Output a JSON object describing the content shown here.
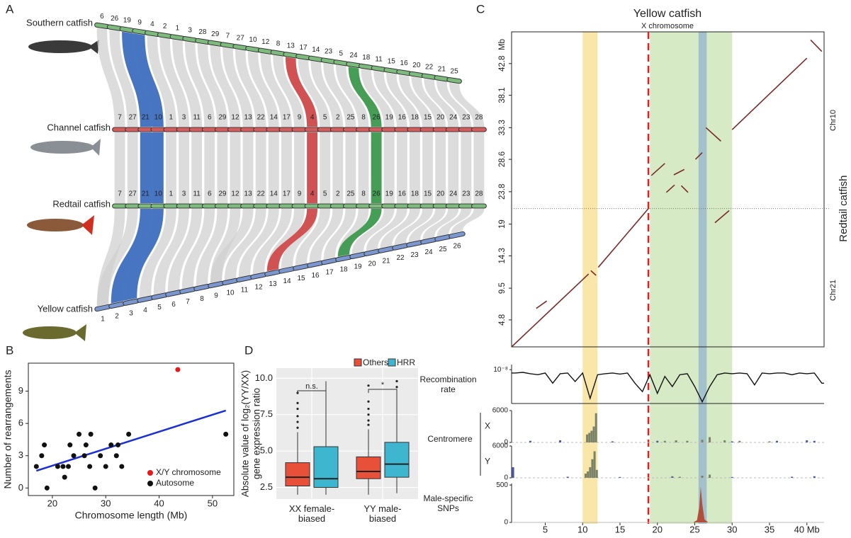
{
  "panel_labels": [
    "A",
    "B",
    "C",
    "D"
  ],
  "synteny": {
    "genomes": [
      {
        "name": "Southern catfish",
        "color": "#5aa55a",
        "bar": "#7dbb7d",
        "chromosomes": [
          6,
          26,
          19,
          9,
          4,
          2,
          1,
          3,
          28,
          29,
          7,
          27,
          10,
          12,
          8,
          13,
          17,
          14,
          23,
          5,
          24,
          18,
          11,
          15,
          16,
          20,
          22,
          21,
          25
        ]
      },
      {
        "name": "Channel catfish",
        "color": "#d24b4b",
        "bar": "#d65c5c",
        "chromosomes": [
          7,
          27,
          21,
          10,
          1,
          3,
          11,
          6,
          29,
          12,
          13,
          22,
          14,
          17,
          9,
          4,
          5,
          2,
          25,
          8,
          26,
          19,
          16,
          18,
          15,
          20,
          24,
          23,
          28
        ]
      },
      {
        "name": "Redtail catfish",
        "color": "#5aa55a",
        "bar": "#7dbb7d",
        "chromosomes": [
          7,
          27,
          21,
          10,
          1,
          3,
          11,
          6,
          29,
          12,
          13,
          22,
          14,
          17,
          9,
          4,
          5,
          2,
          25,
          8,
          26,
          19,
          16,
          18,
          15,
          20,
          24,
          23,
          28
        ]
      },
      {
        "name": "Yellow catfish",
        "color": "#4a70b5",
        "bar": "#7b97cf",
        "chromosomes": [
          1,
          2,
          3,
          4,
          5,
          6,
          7,
          8,
          9,
          10,
          11,
          12,
          13,
          14,
          15,
          16,
          17,
          18,
          19,
          20,
          21,
          22,
          23,
          24,
          25,
          26
        ]
      }
    ],
    "highlights": [
      {
        "color": "#3f6fc0",
        "chromosomes": [
          [
            19,
            9
          ],
          [
            21,
            10
          ],
          [
            21,
            10
          ],
          [
            2,
            3
          ]
        ]
      },
      {
        "color": "#cf4a4a",
        "chromosomes": [
          [
            13
          ],
          [
            4
          ],
          [
            4
          ],
          [
            13
          ]
        ]
      },
      {
        "color": "#3d9a4e",
        "chromosomes": [
          [
            24
          ],
          [
            26
          ],
          [
            26
          ],
          [
            18
          ]
        ]
      }
    ]
  },
  "chart_data": [
    {
      "type": "scatter",
      "xlabel": "Chromosome length (Mb)",
      "ylabel": "Number of rearrangements",
      "xlim": [
        15.5,
        54
      ],
      "ylim": [
        -0.7,
        11.6
      ],
      "xticks": [
        20,
        30,
        40,
        50
      ],
      "yticks": [
        0,
        3,
        6,
        9
      ],
      "series": [
        {
          "name": "X/Y chromosome",
          "color": "#e8191a",
          "x": [
            43.5
          ],
          "values": [
            11
          ]
        },
        {
          "name": "Autosome",
          "color": "#111111",
          "x": [
            17,
            18,
            18.5,
            19,
            21,
            22,
            22.3,
            23,
            23.3,
            24,
            25,
            26,
            26.3,
            27,
            27.2,
            28,
            29,
            30,
            31,
            32,
            32.3,
            33,
            34.3,
            52.5
          ],
          "values": [
            2,
            3,
            4,
            0,
            2,
            2,
            1,
            2,
            4,
            3,
            5,
            3,
            4,
            2,
            5,
            0,
            3,
            2,
            4,
            3,
            4,
            2,
            5,
            5
          ]
        }
      ],
      "trend": {
        "color": "#1b2fd6",
        "x": [
          17,
          52.5
        ],
        "values": [
          1.6,
          7.2
        ]
      }
    },
    {
      "type": "box",
      "ylabel": [
        "Absolute value of log₂(YY/XX)",
        "gene expression ratio"
      ],
      "categories": [
        "XX female-biased",
        "YY male-biased"
      ],
      "ylim": [
        1.7,
        10.7
      ],
      "yticks": [
        {
          "value": 2.5,
          "label": "2.5"
        },
        {
          "value": 5,
          "label": "5.0"
        },
        {
          "value": 7.5,
          "label": "7.5"
        },
        {
          "value": 10,
          "label": "10.0"
        }
      ],
      "series": [
        {
          "name": "Others",
          "color": "#e8503a",
          "boxes": [
            {
              "whislo": 2.0,
              "q1": 2.6,
              "med": 3.2,
              "q3": 4.2,
              "whishi": 6.3,
              "outliers": [
                6.6,
                7.0,
                7.4,
                7.9,
                8.3,
                9.0
              ]
            },
            {
              "whislo": 2.0,
              "q1": 3.1,
              "med": 3.6,
              "q3": 4.6,
              "whishi": 6.5,
              "outliers": [
                6.8,
                7.1,
                7.5,
                7.9,
                8.4,
                9.5
              ]
            }
          ]
        },
        {
          "name": "HRR",
          "color": "#3fb6d0",
          "boxes": [
            {
              "whislo": 2.0,
              "q1": 2.5,
              "med": 3.1,
              "q3": 5.3,
              "whishi": 9.8,
              "outliers": []
            },
            {
              "whislo": 2.1,
              "q1": 3.2,
              "med": 4.1,
              "q3": 5.6,
              "whishi": 9.1,
              "outliers": [
                9.4,
                9.8
              ]
            }
          ]
        }
      ],
      "annotations": [
        "n.s.",
        "*"
      ]
    },
    {
      "type": "dotplot",
      "title": "Yellow catfish",
      "subtitle": "X chromosome",
      "ylabel": "Redtail catfish",
      "y_unit": "Mb",
      "chromosome_labels": [
        "Chr10",
        "Chr21"
      ],
      "xlim": [
        0.5,
        42.3
      ],
      "ylim": [
        0.8,
        47.5
      ],
      "xticks": [
        5,
        10,
        15,
        20,
        25,
        30,
        35,
        {
          "value": 40,
          "label": "40 Mb"
        }
      ],
      "yticks": [
        4.8,
        9.5,
        14.3,
        19,
        23.8,
        28.6,
        33.3,
        38.1,
        42.8
      ],
      "boundary": {
        "x": 18.8,
        "y": 21.3,
        "color": "#e02020"
      },
      "regions": [
        {
          "x": [
            10,
            12
          ],
          "color": "#f8e4a0"
        },
        {
          "x": [
            19,
            30
          ],
          "color": "#d3e8c0"
        },
        {
          "x": [
            25.5,
            26.6
          ],
          "color": "#9dbccc"
        }
      ],
      "color": "#7a2a2a",
      "segments": [
        [
          0.5,
          0.8,
          10.8,
          11.6
        ],
        [
          11.1,
          12.1,
          11.8,
          11.4
        ],
        [
          12.1,
          12.6,
          18.8,
          21.3
        ],
        [
          30,
          33,
          40,
          43.6
        ],
        [
          40.5,
          46.3,
          42,
          44.6
        ],
        [
          19.2,
          26.2,
          21,
          28
        ],
        [
          21.2,
          23.7,
          22.3,
          24.8
        ],
        [
          22.2,
          26.3,
          23.6,
          27.1
        ],
        [
          23.2,
          24.7,
          24.1,
          23.7
        ],
        [
          25.1,
          28.6,
          26,
          29.6
        ],
        [
          26.5,
          33.3,
          28.5,
          31.3
        ],
        [
          27.7,
          19.2,
          29.6,
          21
        ],
        [
          3.8,
          6.5,
          5.2,
          7.6
        ]
      ]
    },
    {
      "type": "line",
      "name": "Recombination rate",
      "color": "#111111",
      "ylim": [
        0,
        1.15e-08
      ],
      "yticks": [
        {
          "value": 1e-08,
          "label": "10⁻⁸"
        }
      ],
      "x": [
        1,
        2,
        3,
        4,
        5,
        6,
        7,
        8,
        9,
        10,
        11,
        12,
        13,
        14,
        15,
        16,
        17,
        18,
        19,
        20,
        21,
        22,
        23,
        24,
        25,
        26,
        27,
        28,
        29,
        30,
        31,
        32,
        33,
        34,
        35,
        36,
        37,
        38,
        39,
        40,
        41,
        42
      ],
      "values": [
        9e-09,
        9.2e-09,
        8.8e-09,
        8.5e-09,
        9e-09,
        6e-09,
        8.8e-09,
        9e-09,
        6.5e-09,
        9e-09,
        1.5e-09,
        8.5e-09,
        8.8e-09,
        9e-09,
        8.7e-09,
        9e-09,
        6e-09,
        3.5e-09,
        8.5e-09,
        3e-09,
        8e-09,
        5e-09,
        8.5e-09,
        8.8e-09,
        5e-09,
        5e-10,
        5e-09,
        8.5e-09,
        9e-09,
        8.8e-09,
        9e-09,
        8.8e-09,
        5.5e-09,
        9e-09,
        8.8e-09,
        9e-09,
        9e-09,
        8.5e-09,
        9e-09,
        8.8e-09,
        9e-09,
        6e-09
      ]
    },
    {
      "type": "bar",
      "name": "Centromere",
      "track": "X",
      "ylim": [
        0,
        6000
      ],
      "yticks": [
        0,
        6000
      ],
      "series": [
        {
          "color": "#7b8268",
          "x": [
            10.6,
            10.9,
            11.2,
            11.5,
            11.8,
            21,
            22.5,
            24,
            26,
            27,
            29,
            31,
            35
          ],
          "values": [
            1500,
            1800,
            2200,
            3000,
            5500,
            300,
            400,
            300,
            500,
            1000,
            400,
            300,
            200
          ]
        },
        {
          "color": "#4859a8",
          "x": [
            3,
            7,
            14,
            20,
            30,
            36,
            40,
            41
          ],
          "values": [
            300,
            400,
            200,
            300,
            200,
            300,
            400,
            300
          ]
        }
      ]
    },
    {
      "type": "bar",
      "track": "Y",
      "ylim": [
        0,
        6000
      ],
      "yticks": [
        0,
        6000
      ],
      "series": [
        {
          "color": "#7b8268",
          "x": [
            10.4,
            10.7,
            11,
            11.3,
            11.6,
            11.9,
            22,
            23,
            26,
            27
          ],
          "values": [
            800,
            1200,
            2000,
            3500,
            5000,
            1500,
            300,
            200,
            400,
            600
          ]
        },
        {
          "color": "#4859a8",
          "x": [
            0.7,
            8,
            15,
            22,
            30,
            38,
            41
          ],
          "values": [
            2000,
            200,
            150,
            200,
            150,
            200,
            300
          ]
        }
      ]
    },
    {
      "type": "area",
      "name": "Male-specific SNPs",
      "color": "#b0503c",
      "ylim": [
        0,
        520
      ],
      "yticks": [
        0,
        500
      ],
      "x": [
        24.8,
        25.3,
        25.6,
        25.8,
        26,
        26.3,
        26.8
      ],
      "values": [
        0,
        30,
        200,
        480,
        250,
        40,
        0
      ]
    }
  ]
}
